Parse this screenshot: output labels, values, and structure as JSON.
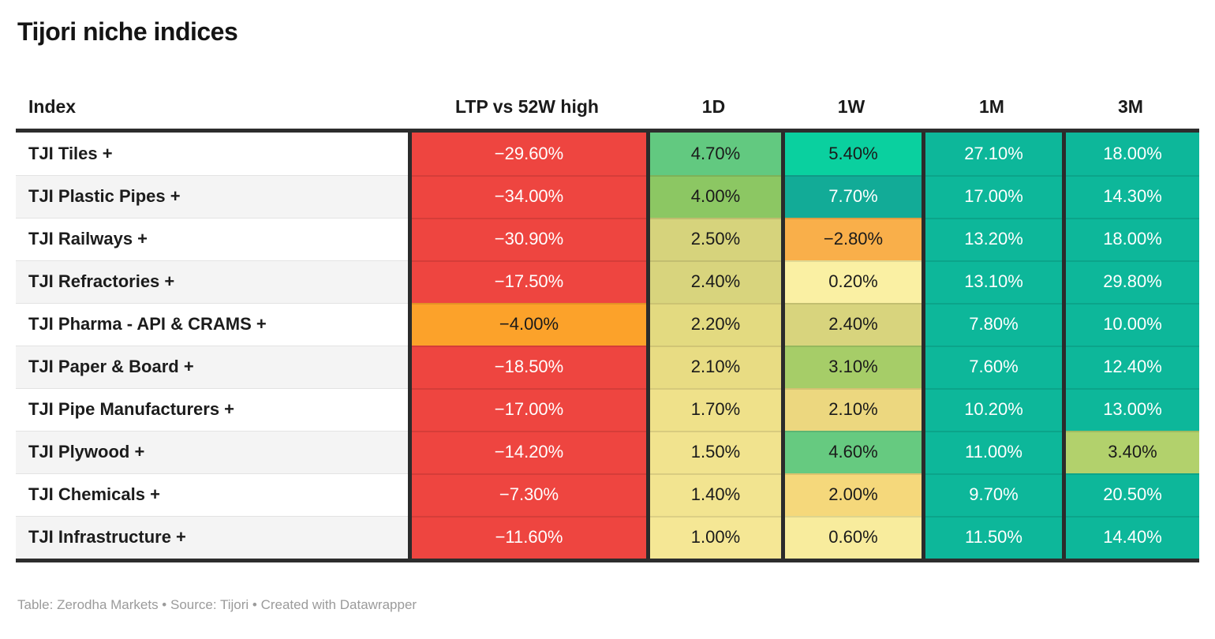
{
  "title": "Tijori niche indices",
  "columns": [
    {
      "key": "index",
      "label": "Index"
    },
    {
      "key": "ltp",
      "label": "LTP vs 52W high"
    },
    {
      "key": "d1",
      "label": "1D"
    },
    {
      "key": "w1",
      "label": "1W"
    },
    {
      "key": "m1",
      "label": "1M"
    },
    {
      "key": "m3",
      "label": "3M"
    }
  ],
  "rows": [
    {
      "label": "TJI Tiles +",
      "cells": [
        {
          "text": "−29.60%",
          "bg": "#ee4540",
          "fg": "#ffffff"
        },
        {
          "text": "4.70%",
          "bg": "#62c980",
          "fg": "#1a1a1a"
        },
        {
          "text": "5.40%",
          "bg": "#0ad09f",
          "fg": "#1a1a1a"
        },
        {
          "text": "27.10%",
          "bg": "#0db79a",
          "fg": "#ffffff"
        },
        {
          "text": "18.00%",
          "bg": "#0db79a",
          "fg": "#ffffff"
        }
      ]
    },
    {
      "label": "TJI Plastic Pipes +",
      "cells": [
        {
          "text": "−34.00%",
          "bg": "#ee4540",
          "fg": "#ffffff"
        },
        {
          "text": "4.00%",
          "bg": "#8cc763",
          "fg": "#1a1a1a"
        },
        {
          "text": "7.70%",
          "bg": "#12ab97",
          "fg": "#ffffff"
        },
        {
          "text": "17.00%",
          "bg": "#0db79a",
          "fg": "#ffffff"
        },
        {
          "text": "14.30%",
          "bg": "#0db79a",
          "fg": "#ffffff"
        }
      ]
    },
    {
      "label": "TJI Railways +",
      "cells": [
        {
          "text": "−30.90%",
          "bg": "#ee4540",
          "fg": "#ffffff"
        },
        {
          "text": "2.50%",
          "bg": "#d6d37c",
          "fg": "#1a1a1a"
        },
        {
          "text": "−2.80%",
          "bg": "#f9af4a",
          "fg": "#1a1a1a"
        },
        {
          "text": "13.20%",
          "bg": "#0db79a",
          "fg": "#ffffff"
        },
        {
          "text": "18.00%",
          "bg": "#0db79a",
          "fg": "#ffffff"
        }
      ]
    },
    {
      "label": "TJI Refractories +",
      "cells": [
        {
          "text": "−17.50%",
          "bg": "#ee4540",
          "fg": "#ffffff"
        },
        {
          "text": "2.40%",
          "bg": "#d8d47d",
          "fg": "#1a1a1a"
        },
        {
          "text": "0.20%",
          "bg": "#faf0a3",
          "fg": "#1a1a1a"
        },
        {
          "text": "13.10%",
          "bg": "#0db79a",
          "fg": "#ffffff"
        },
        {
          "text": "29.80%",
          "bg": "#0db79a",
          "fg": "#ffffff"
        }
      ]
    },
    {
      "label": "TJI Pharma - API & CRAMS +",
      "cells": [
        {
          "text": "−4.00%",
          "bg": "#fca22a",
          "fg": "#1a1a1a"
        },
        {
          "text": "2.20%",
          "bg": "#e3da80",
          "fg": "#1a1a1a"
        },
        {
          "text": "2.40%",
          "bg": "#d8d47d",
          "fg": "#1a1a1a"
        },
        {
          "text": "7.80%",
          "bg": "#0db79a",
          "fg": "#ffffff"
        },
        {
          "text": "10.00%",
          "bg": "#0db79a",
          "fg": "#ffffff"
        }
      ]
    },
    {
      "label": "TJI Paper & Board +",
      "cells": [
        {
          "text": "−18.50%",
          "bg": "#ee4540",
          "fg": "#ffffff"
        },
        {
          "text": "2.10%",
          "bg": "#e8dc83",
          "fg": "#1a1a1a"
        },
        {
          "text": "3.10%",
          "bg": "#a6cd68",
          "fg": "#1a1a1a"
        },
        {
          "text": "7.60%",
          "bg": "#0db79a",
          "fg": "#ffffff"
        },
        {
          "text": "12.40%",
          "bg": "#0db79a",
          "fg": "#ffffff"
        }
      ]
    },
    {
      "label": "TJI Pipe Manufacturers +",
      "cells": [
        {
          "text": "−17.00%",
          "bg": "#ee4540",
          "fg": "#ffffff"
        },
        {
          "text": "1.70%",
          "bg": "#efe18a",
          "fg": "#1a1a1a"
        },
        {
          "text": "2.10%",
          "bg": "#ecd77f",
          "fg": "#1a1a1a"
        },
        {
          "text": "10.20%",
          "bg": "#0db79a",
          "fg": "#ffffff"
        },
        {
          "text": "13.00%",
          "bg": "#0db79a",
          "fg": "#ffffff"
        }
      ]
    },
    {
      "label": "TJI Plywood +",
      "cells": [
        {
          "text": "−14.20%",
          "bg": "#ee4540",
          "fg": "#ffffff"
        },
        {
          "text": "1.50%",
          "bg": "#f1e38e",
          "fg": "#1a1a1a"
        },
        {
          "text": "4.60%",
          "bg": "#66ca80",
          "fg": "#1a1a1a"
        },
        {
          "text": "11.00%",
          "bg": "#0db79a",
          "fg": "#ffffff"
        },
        {
          "text": "3.40%",
          "bg": "#b2d16c",
          "fg": "#1a1a1a"
        }
      ]
    },
    {
      "label": "TJI Chemicals +",
      "cells": [
        {
          "text": "−7.30%",
          "bg": "#ee4540",
          "fg": "#ffffff"
        },
        {
          "text": "1.40%",
          "bg": "#f2e490",
          "fg": "#1a1a1a"
        },
        {
          "text": "2.00%",
          "bg": "#f5d87b",
          "fg": "#1a1a1a"
        },
        {
          "text": "9.70%",
          "bg": "#0db79a",
          "fg": "#ffffff"
        },
        {
          "text": "20.50%",
          "bg": "#0db79a",
          "fg": "#ffffff"
        }
      ]
    },
    {
      "label": "TJI Infrastructure +",
      "cells": [
        {
          "text": "−11.60%",
          "bg": "#ee4540",
          "fg": "#ffffff"
        },
        {
          "text": "1.00%",
          "bg": "#f5e795",
          "fg": "#1a1a1a"
        },
        {
          "text": "0.60%",
          "bg": "#f8ec9d",
          "fg": "#1a1a1a"
        },
        {
          "text": "11.50%",
          "bg": "#0db79a",
          "fg": "#ffffff"
        },
        {
          "text": "14.40%",
          "bg": "#0db79a",
          "fg": "#ffffff"
        }
      ]
    }
  ],
  "footer": "Table: Zerodha Markets • Source: Tijori • Created with Datawrapper",
  "colors": {
    "negative_strong": "#ee4540",
    "negative_mild": "#fca22a",
    "positive_strong": "#0db79a",
    "border_dark": "#2b2b2b",
    "row_stripe": "#f4f4f4",
    "footer_text": "#9b9b9b"
  },
  "chart_data": {
    "type": "table",
    "title": "Tijori niche indices",
    "columns": [
      "Index",
      "LTP vs 52W high",
      "1D",
      "1W",
      "1M",
      "3M"
    ],
    "rows": [
      [
        "TJI Tiles +",
        -29.6,
        4.7,
        5.4,
        27.1,
        18.0
      ],
      [
        "TJI Plastic Pipes +",
        -34.0,
        4.0,
        7.7,
        17.0,
        14.3
      ],
      [
        "TJI Railways +",
        -30.9,
        2.5,
        -2.8,
        13.2,
        18.0
      ],
      [
        "TJI Refractories +",
        -17.5,
        2.4,
        0.2,
        13.1,
        29.8
      ],
      [
        "TJI Pharma - API & CRAMS +",
        -4.0,
        2.2,
        2.4,
        7.8,
        10.0
      ],
      [
        "TJI Paper & Board +",
        -18.5,
        2.1,
        3.1,
        7.6,
        12.4
      ],
      [
        "TJI Pipe Manufacturers +",
        -17.0,
        1.7,
        2.1,
        10.2,
        13.0
      ],
      [
        "TJI Plywood +",
        -14.2,
        1.5,
        4.6,
        11.0,
        3.4
      ],
      [
        "TJI Chemicals +",
        -7.3,
        1.4,
        2.0,
        9.7,
        20.5
      ],
      [
        "TJI Infrastructure +",
        -11.6,
        1.0,
        0.6,
        11.5,
        14.4
      ]
    ],
    "units": "percent",
    "color_encoding": "diverging heatmap: red (negative) → yellow (near zero) → green/teal (positive)"
  }
}
